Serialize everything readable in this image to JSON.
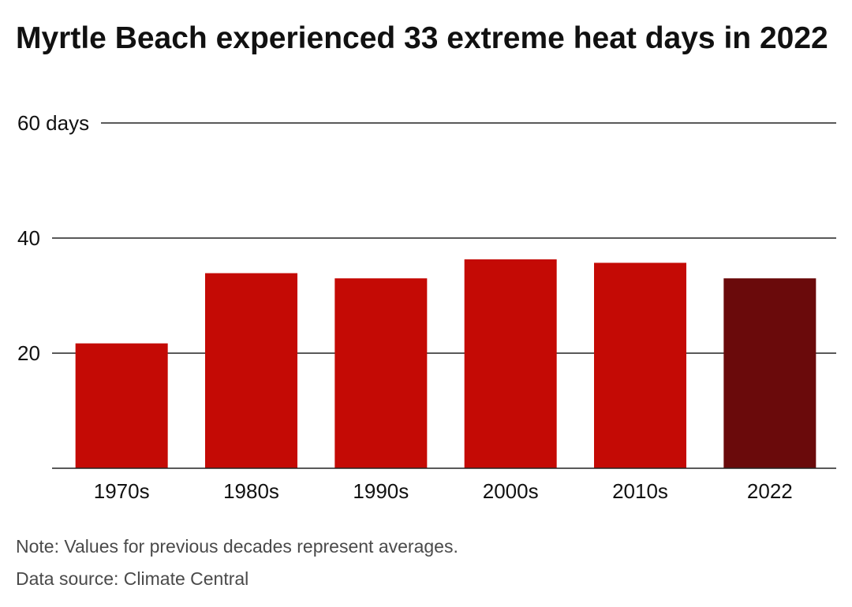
{
  "chart_data": {
    "type": "bar",
    "title": "Myrtle Beach experienced 33 extreme heat days in 2022",
    "categories": [
      "1970s",
      "1980s",
      "1990s",
      "2000s",
      "2010s",
      "2022"
    ],
    "values": [
      21.7,
      33.9,
      33.0,
      36.3,
      35.7,
      33.0
    ],
    "ylim": [
      0,
      60
    ],
    "yticks": [
      {
        "value": 20,
        "label": "20"
      },
      {
        "value": 40,
        "label": "40"
      },
      {
        "value": 60,
        "label": "60 days"
      }
    ],
    "grid": true,
    "colors": {
      "decade": "#c40a05",
      "highlight": "#6a0a0b",
      "gridline": "#222222"
    },
    "highlight_category": "2022",
    "note": "Note: Values for previous decades represent averages.",
    "source": "Data source: Climate Central"
  }
}
